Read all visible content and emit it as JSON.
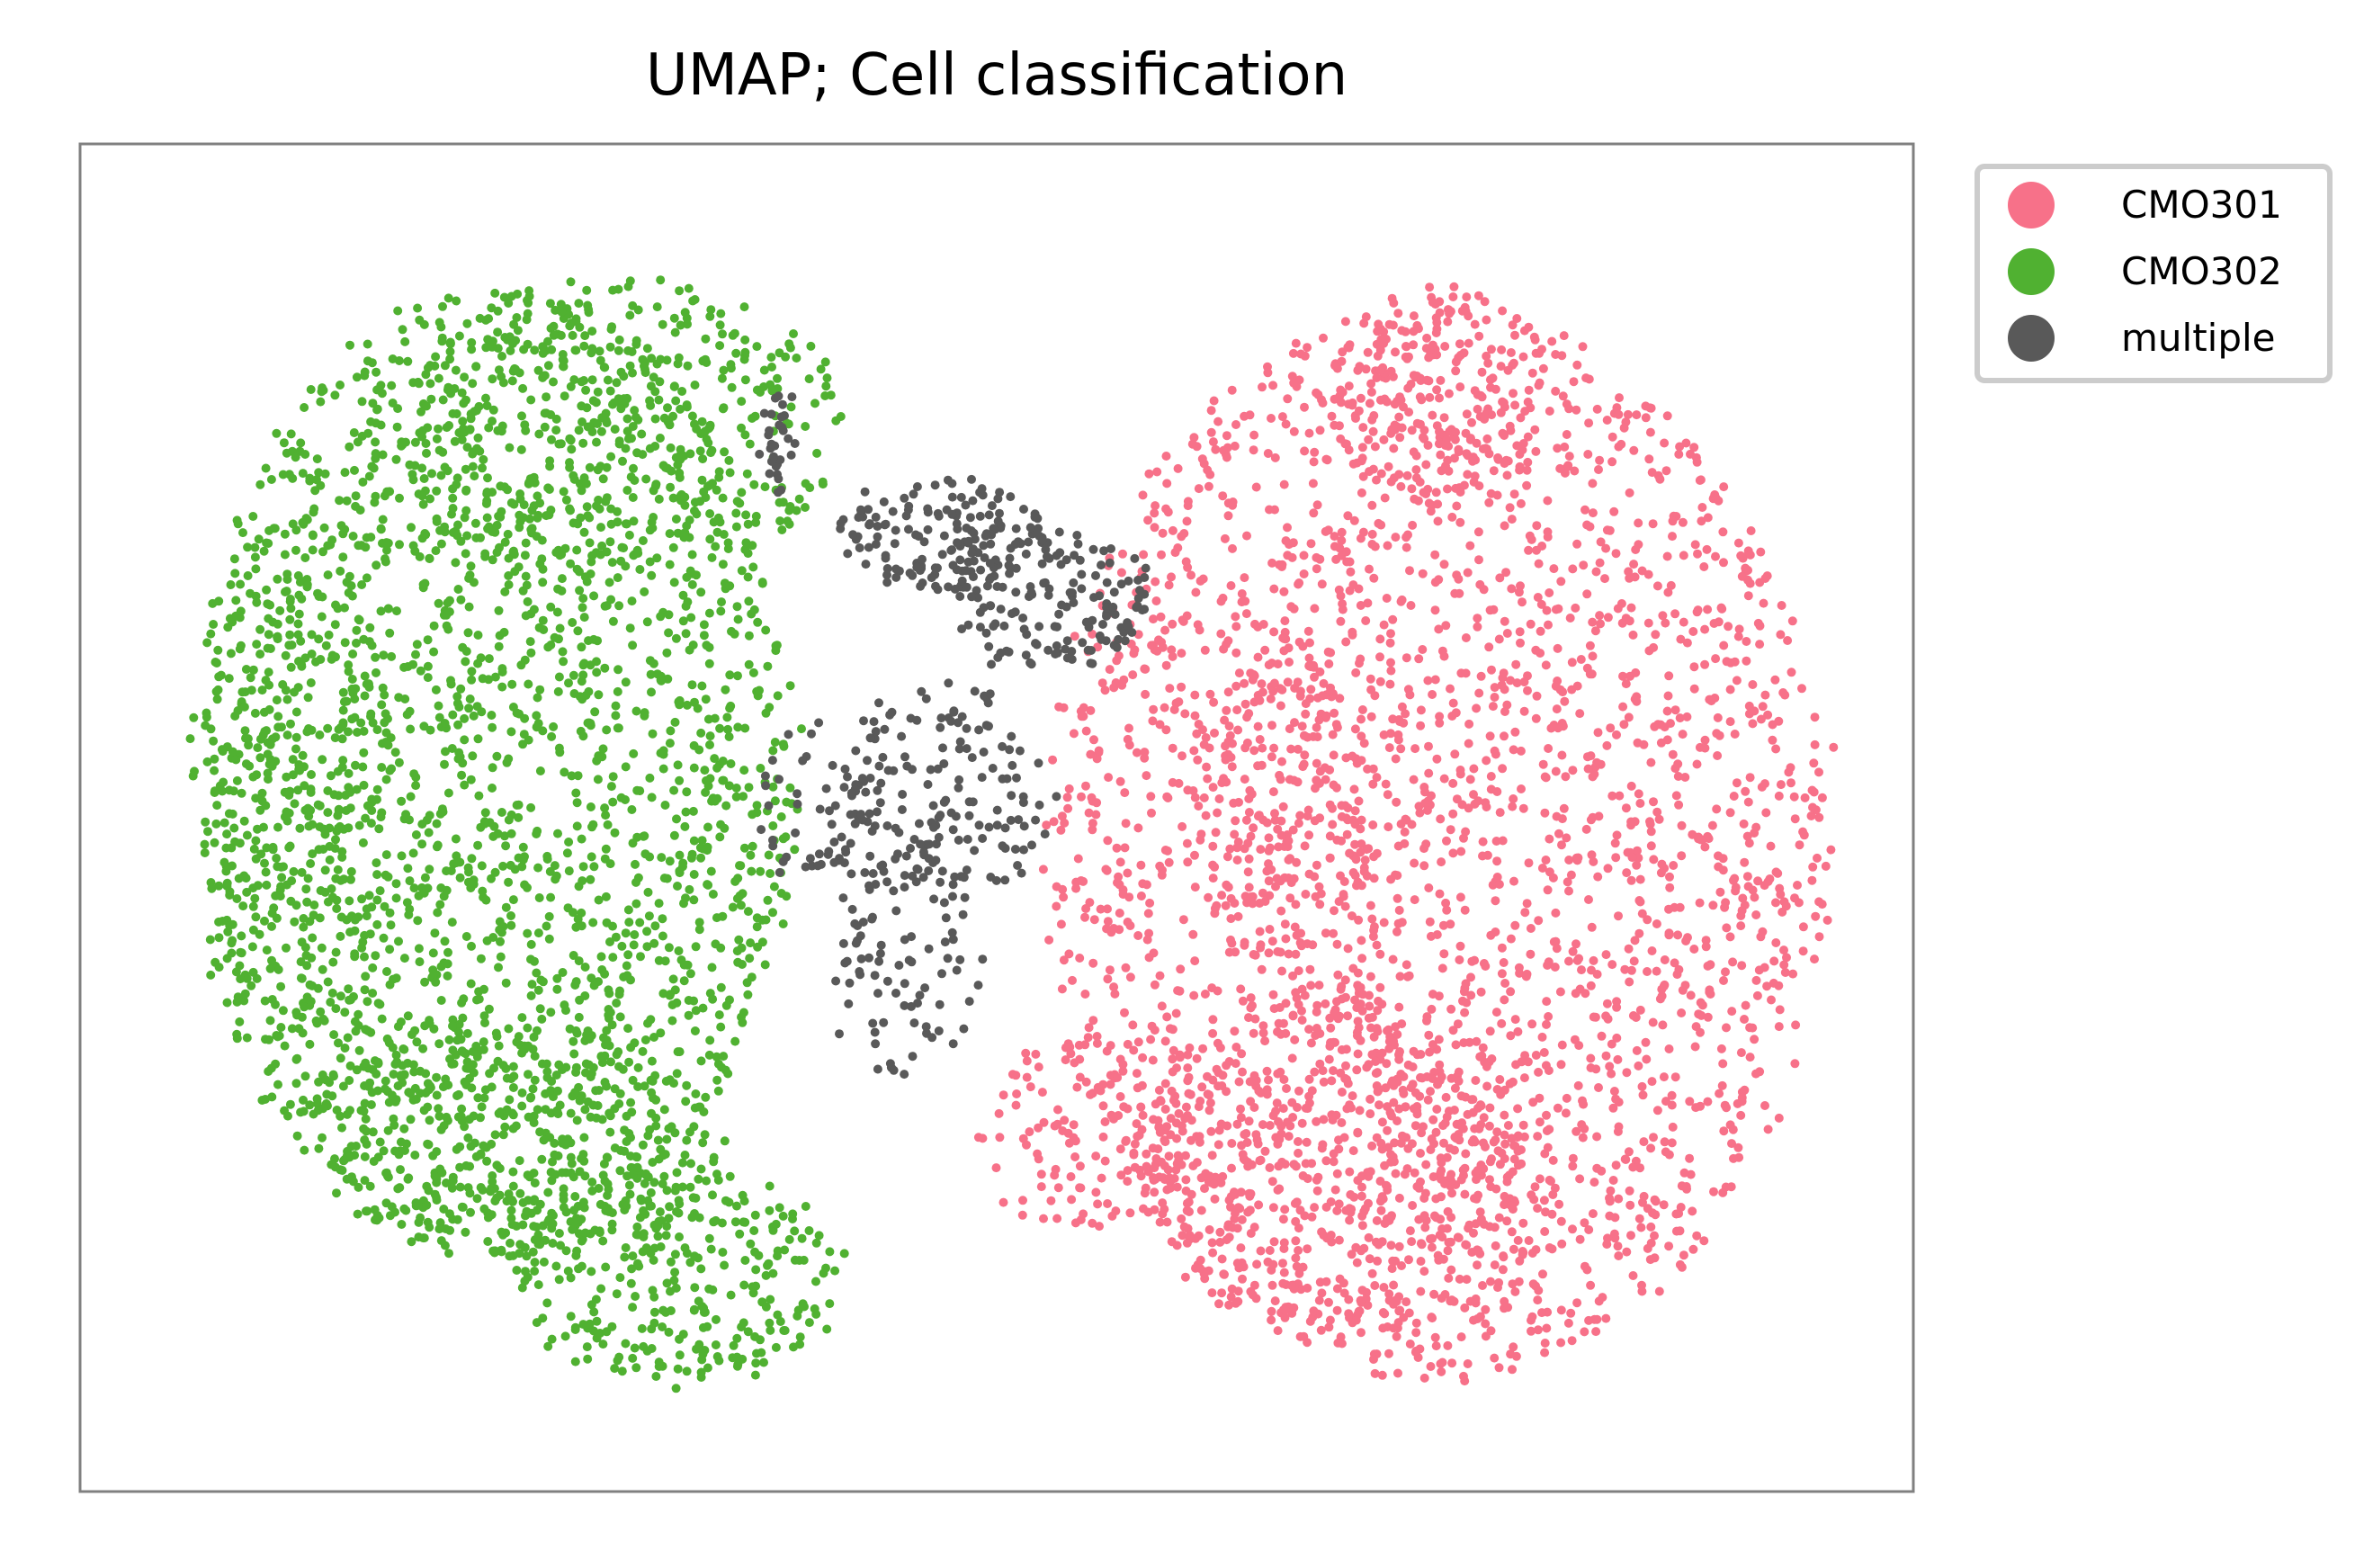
{
  "chart_data": {
    "type": "scatter",
    "title": "UMAP; Cell classification",
    "xlabel": "",
    "ylabel": "",
    "xticks": [],
    "yticks": [],
    "grid": false,
    "legend_position": "outside-top-right",
    "series": [
      {
        "name": "CMO301",
        "color": "#f77189",
        "clusters": [
          {
            "cx": 0.74,
            "cy": 0.52,
            "rx": 0.215,
            "ry": 0.4,
            "n": 2400
          },
          {
            "cx": 0.69,
            "cy": 0.76,
            "rx": 0.11,
            "ry": 0.13,
            "n": 500
          },
          {
            "cx": 0.55,
            "cy": 0.735,
            "rx": 0.06,
            "ry": 0.07,
            "n": 120
          },
          {
            "cx": 0.74,
            "cy": 0.185,
            "rx": 0.06,
            "ry": 0.08,
            "n": 200
          },
          {
            "cx": 0.655,
            "cy": 0.49,
            "rx": 0.05,
            "ry": 0.12,
            "n": 160
          }
        ]
      },
      {
        "name": "CMO302",
        "color": "#50b131",
        "clusters": [
          {
            "cx": 0.225,
            "cy": 0.47,
            "rx": 0.165,
            "ry": 0.36,
            "n": 2000
          },
          {
            "cx": 0.29,
            "cy": 0.21,
            "rx": 0.13,
            "ry": 0.11,
            "n": 400
          },
          {
            "cx": 0.33,
            "cy": 0.84,
            "rx": 0.09,
            "ry": 0.08,
            "n": 300
          },
          {
            "cx": 0.24,
            "cy": 0.74,
            "rx": 0.11,
            "ry": 0.09,
            "n": 300
          },
          {
            "cx": 0.12,
            "cy": 0.5,
            "rx": 0.05,
            "ry": 0.23,
            "n": 250
          }
        ]
      },
      {
        "name": "multiple",
        "color": "#595959",
        "clusters": [
          {
            "cx": 0.47,
            "cy": 0.29,
            "rx": 0.06,
            "ry": 0.04,
            "n": 150
          },
          {
            "cx": 0.53,
            "cy": 0.34,
            "rx": 0.055,
            "ry": 0.05,
            "n": 150
          },
          {
            "cx": 0.47,
            "cy": 0.48,
            "rx": 0.06,
            "ry": 0.08,
            "n": 150
          },
          {
            "cx": 0.45,
            "cy": 0.6,
            "rx": 0.04,
            "ry": 0.09,
            "n": 100
          },
          {
            "cx": 0.4,
            "cy": 0.49,
            "rx": 0.03,
            "ry": 0.06,
            "n": 50
          },
          {
            "cx": 0.38,
            "cy": 0.22,
            "rx": 0.008,
            "ry": 0.04,
            "n": 30
          }
        ]
      }
    ]
  },
  "legend": {
    "items": [
      {
        "label": "CMO301",
        "color": "#f77189"
      },
      {
        "label": "CMO302",
        "color": "#50b131"
      },
      {
        "label": "multiple",
        "color": "#595959"
      }
    ]
  }
}
